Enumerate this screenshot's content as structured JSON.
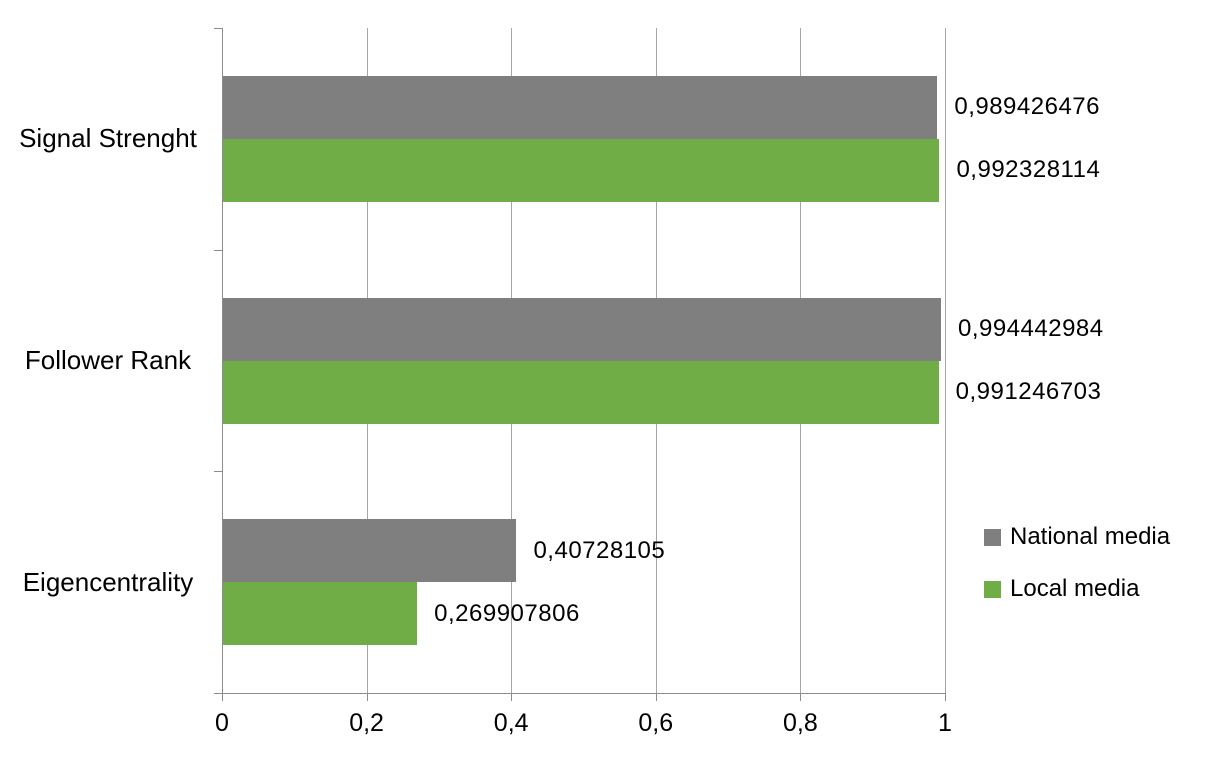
{
  "chart_data": {
    "type": "bar",
    "orientation": "horizontal",
    "categories": [
      "Signal Strenght",
      "Follower Rank",
      "Eigencentrality"
    ],
    "series": [
      {
        "name": "National media",
        "color": "#7F7F7F",
        "values": [
          0.989426476,
          0.994442984,
          0.40728105
        ],
        "labels": [
          "0,989426476",
          "0,994442984",
          "0,40728105"
        ]
      },
      {
        "name": "Local media",
        "color": "#70AD47",
        "values": [
          0.992328114,
          0.991246703,
          0.269907806
        ],
        "labels": [
          "0,992328114",
          "0,991246703",
          "0,269907806"
        ]
      }
    ],
    "xlim": [
      0,
      1
    ],
    "x_ticks": [
      {
        "value": 0.0,
        "label": "0"
      },
      {
        "value": 0.2,
        "label": "0,2"
      },
      {
        "value": 0.4,
        "label": "0,4"
      },
      {
        "value": 0.6,
        "label": "0,6"
      },
      {
        "value": 0.8,
        "label": "0,8"
      },
      {
        "value": 1.0,
        "label": "1"
      }
    ],
    "grid": "vertical-on",
    "legend_position": "right",
    "colors": {
      "gridline": "#A6A6A6",
      "axis": "#8C8C8C",
      "text": "#000000",
      "background": "#FFFFFF"
    }
  }
}
